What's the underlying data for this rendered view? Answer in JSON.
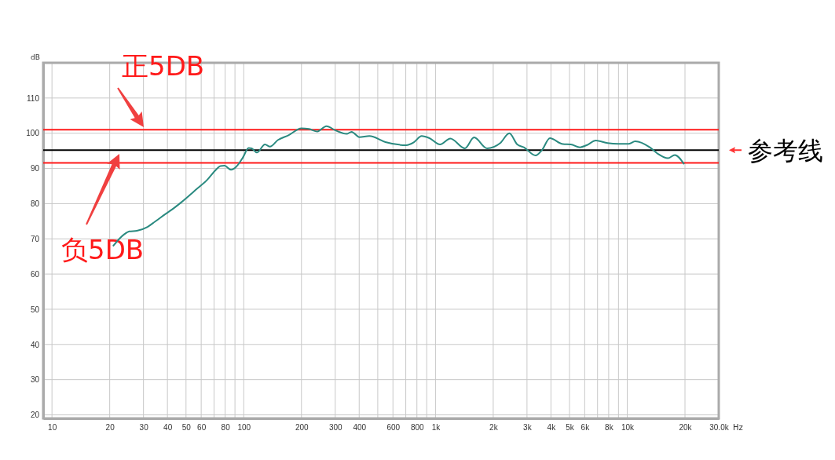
{
  "chart_data": {
    "type": "line",
    "xlabel": "Hz",
    "ylabel": "dB",
    "log": "x",
    "grid": true,
    "marker": "none",
    "line_style": "solid",
    "xlim": [
      9,
      30000
    ],
    "ylim": [
      19,
      120
    ],
    "xticks": [
      10,
      20,
      30,
      40,
      50,
      60,
      {
        "value": 70,
        "label": null
      },
      80,
      {
        "value": 90,
        "label": null
      },
      100,
      200,
      300,
      400,
      {
        "value": 500,
        "label": null
      },
      600,
      {
        "value": 700,
        "label": null
      },
      800,
      {
        "value": 900,
        "label": null
      },
      {
        "value": 1000,
        "label": "1k"
      },
      {
        "value": 2000,
        "label": "2k"
      },
      {
        "value": 3000,
        "label": "3k"
      },
      {
        "value": 4000,
        "label": "4k"
      },
      {
        "value": 5000,
        "label": "5k"
      },
      {
        "value": 6000,
        "label": "6k"
      },
      {
        "value": 7000,
        "label": null
      },
      {
        "value": 8000,
        "label": "8k"
      },
      {
        "value": 9000,
        "label": null
      },
      {
        "value": 10000,
        "label": "10k"
      },
      {
        "value": 20000,
        "label": "20k"
      },
      {
        "value": 30000,
        "label": "30.0k"
      }
    ],
    "yticks": [
      20,
      30,
      40,
      50,
      60,
      70,
      80,
      90,
      100,
      110
    ],
    "series": [
      {
        "color": "#2a8a80",
        "x": [
          20.8,
          23.7,
          25.3,
          27.7,
          31.5,
          34.5,
          39.2,
          41.7,
          47.3,
          57,
          64.6,
          71,
          75.7,
          79.4,
          85.9,
          91.5,
          99,
          106,
          110,
          117,
          129,
          137,
          151,
          171,
          200,
          219,
          242,
          270,
          301,
          344,
          365,
          401,
          452,
          548,
          703,
          770,
          847,
          930,
          1056,
          1195,
          1424,
          1590,
          1858,
          2176,
          2428,
          2670,
          2888,
          3325,
          3600,
          3950,
          4620,
          5080,
          5670,
          6140,
          6860,
          7900,
          8970,
          10200,
          11000,
          13100,
          14400,
          16300,
          17700,
          19800
        ],
        "values": [
          67.9,
          71.2,
          72.1,
          72.3,
          73.4,
          74.9,
          77.1,
          78.1,
          80.4,
          84.2,
          86.8,
          89.4,
          90.7,
          90.8,
          89.6,
          90.5,
          93.1,
          95.8,
          95.7,
          94.5,
          96.8,
          96.2,
          98.1,
          99.4,
          101.4,
          101.2,
          100.5,
          102,
          100.8,
          99.8,
          100.4,
          98.9,
          99.2,
          97.5,
          96.6,
          97.4,
          99.2,
          98.6,
          96.8,
          98.5,
          95.7,
          98.8,
          95.7,
          97.2,
          100,
          96.8,
          96,
          93.7,
          95.3,
          98.6,
          96.9,
          96.8,
          96,
          96.6,
          97.9,
          97.2,
          97,
          97,
          97.7,
          96,
          94.2,
          92.9,
          93.8,
          91.2
        ]
      }
    ],
    "ref_lines": [
      {
        "axis": "y",
        "value": 101,
        "label": "正5DB",
        "color": "#ff1a1a"
      },
      {
        "axis": "y",
        "value": 95.2,
        "label": "参考线",
        "color": "#000000"
      },
      {
        "axis": "y",
        "value": 91.6,
        "label": "负5DB",
        "color": "#ff1a1a"
      }
    ]
  }
}
